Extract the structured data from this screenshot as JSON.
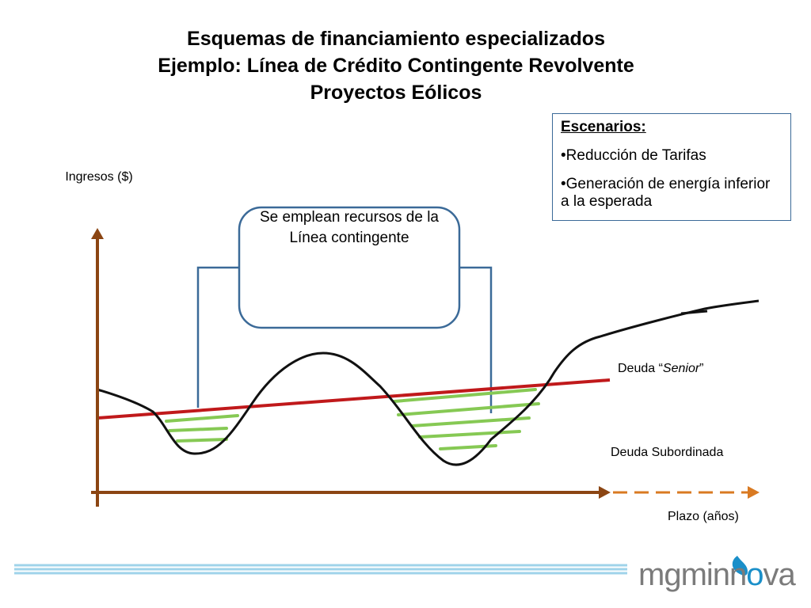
{
  "title": {
    "line1": "Esquemas de financiamiento especializados",
    "line2": "Ejemplo: Línea de Crédito Contingente Revolvente",
    "line3": "Proyectos Eólicos"
  },
  "scenarios": {
    "title": "Escenarios:",
    "items": [
      "•Reducción de Tarifas",
      "•Generación de energía inferior a la esperada"
    ]
  },
  "axis": {
    "y_label": "Ingresos ($)",
    "x_label": "Plazo (años)"
  },
  "callout": {
    "text": "Se emplean recursos de la Línea contingente"
  },
  "labels": {
    "senior_prefix": "Deuda “",
    "senior_italic": "Senior",
    "senior_suffix": "”",
    "subordinated": "Deuda Subordinada"
  },
  "logo": {
    "part1": "mgminn",
    "part2": "o",
    "part3": "va"
  },
  "colors": {
    "axis": "#8b4513",
    "axis_dashed": "#d97a22",
    "senior_line": "#c0191b",
    "revenue_curve": "#111111",
    "hatch": "#86c954",
    "callout_border": "#3b6a98",
    "footer_line": "#9fd3ea"
  }
}
